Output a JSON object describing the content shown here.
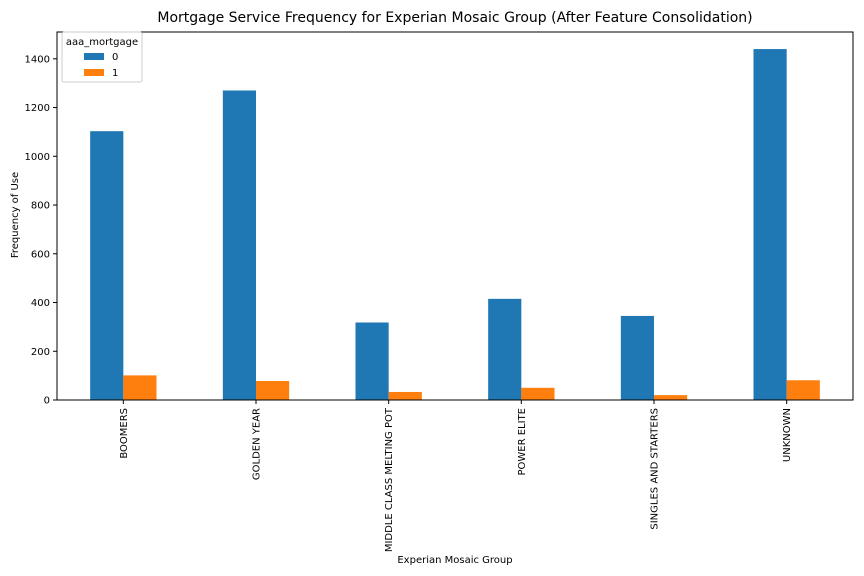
{
  "chart_data": {
    "type": "bar",
    "title": "Mortgage Service Frequency for Experian Mosaic Group (After Feature Consolidation)",
    "xlabel": "Experian Mosaic Group",
    "ylabel": "Frequency of Use",
    "categories": [
      "BOOMERS",
      "GOLDEN YEAR",
      "MIDDLE CLASS MELTING POT",
      "POWER ELITE",
      "SINGLES AND STARTERS",
      "UNKNOWN"
    ],
    "series": [
      {
        "name": "0",
        "color": "#1f77b4",
        "values": [
          1103,
          1270,
          318,
          415,
          345,
          1440
        ]
      },
      {
        "name": "1",
        "color": "#ff7f0e",
        "values": [
          101,
          78,
          33,
          50,
          20,
          81
        ]
      }
    ],
    "legend": {
      "title": "aaa_mortgage",
      "placement": "top-left"
    },
    "ylim": [
      0,
      1510
    ],
    "yticks": [
      0,
      200,
      400,
      600,
      800,
      1000,
      1200,
      1400
    ],
    "grid": false
  }
}
